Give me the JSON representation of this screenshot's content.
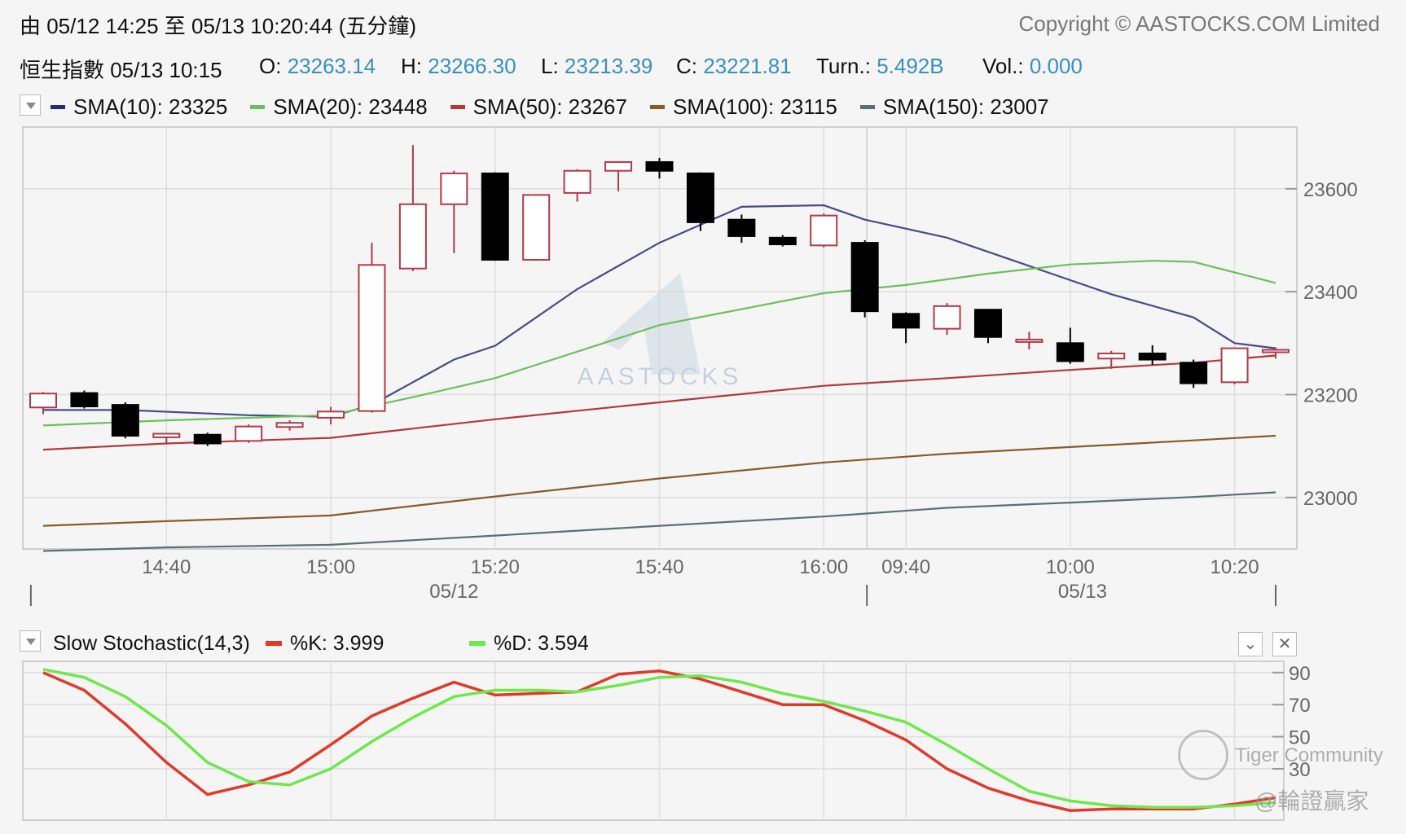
{
  "header": {
    "range_text": "由  05/12 14:25 至  05/13 10:20:44 (五分鐘)",
    "copyright": "Copyright © AASTOCKS.COM Limited",
    "index_name_time": "恒生指數  05/13 10:15",
    "open_label": "O:",
    "open_value": "23263.14",
    "high_label": "H:",
    "high_value": "23266.30",
    "low_label": "L:",
    "low_value": "23213.39",
    "close_label": "C:",
    "close_value": "23221.81",
    "turn_label": "Turn.:",
    "turn_value": "5.492B",
    "vol_label": "Vol.:",
    "vol_value": "0.000"
  },
  "main_legend": [
    {
      "label": "SMA(10): 23325",
      "color": "#2a2a6e"
    },
    {
      "label": "SMA(20): 23448",
      "color": "#6cc05c"
    },
    {
      "label": "SMA(50): 23267",
      "color": "#b03a3a"
    },
    {
      "label": "SMA(100): 23115",
      "color": "#8a5a2a"
    },
    {
      "label": "SMA(150): 23007",
      "color": "#5a7070"
    }
  ],
  "stoch_legend": {
    "title": "Slow Stochastic(14,3)",
    "k_label": "%K: 3.999",
    "k_color": "#e0392a",
    "d_label": "%D: 3.594",
    "d_color": "#6ee84a"
  },
  "watermark": "AASTOCKS",
  "tiger": {
    "line1": "Tiger Community",
    "line2": "@輪證贏家"
  },
  "chart_data": [
    {
      "type": "candlestick",
      "y_ticks": [
        23000,
        23200,
        23400,
        23600
      ],
      "ylim": [
        22900,
        23720
      ],
      "x_tick_labels": [
        "14:40",
        "15:00",
        "15:20",
        "15:40",
        "16:00",
        "09:40",
        "10:00",
        "10:20"
      ],
      "x_tick_index": [
        3,
        7,
        11,
        15,
        19,
        21,
        25,
        29
      ],
      "date_labels": [
        "05/12",
        "05/13"
      ],
      "date_label_index": [
        10,
        25.3
      ],
      "date_separators": [
        -0.3,
        20.05,
        30
      ],
      "up_color": "#b03a4a",
      "down_color": "#000000",
      "candles": [
        {
          "o": 23175,
          "h": 23205,
          "l": 23162,
          "c": 23202
        },
        {
          "o": 23203,
          "h": 23208,
          "l": 23173,
          "c": 23177
        },
        {
          "o": 23180,
          "h": 23185,
          "l": 23115,
          "c": 23120
        },
        {
          "o": 23117,
          "h": 23125,
          "l": 23105,
          "c": 23124
        },
        {
          "o": 23122,
          "h": 23126,
          "l": 23100,
          "c": 23105
        },
        {
          "o": 23110,
          "h": 23142,
          "l": 23106,
          "c": 23138
        },
        {
          "o": 23137,
          "h": 23150,
          "l": 23130,
          "c": 23145
        },
        {
          "o": 23155,
          "h": 23176,
          "l": 23142,
          "c": 23167
        },
        {
          "o": 23168,
          "h": 23495,
          "l": 23165,
          "c": 23452
        },
        {
          "o": 23445,
          "h": 23685,
          "l": 23440,
          "c": 23570
        },
        {
          "o": 23570,
          "h": 23635,
          "l": 23475,
          "c": 23630
        },
        {
          "o": 23630,
          "h": 23632,
          "l": 23460,
          "c": 23462
        },
        {
          "o": 23462,
          "h": 23590,
          "l": 23460,
          "c": 23588
        },
        {
          "o": 23592,
          "h": 23638,
          "l": 23575,
          "c": 23635
        },
        {
          "o": 23635,
          "h": 23650,
          "l": 23595,
          "c": 23652
        },
        {
          "o": 23652,
          "h": 23660,
          "l": 23620,
          "c": 23635
        },
        {
          "o": 23630,
          "h": 23632,
          "l": 23518,
          "c": 23535
        },
        {
          "o": 23540,
          "h": 23550,
          "l": 23495,
          "c": 23508
        },
        {
          "o": 23505,
          "h": 23510,
          "l": 23488,
          "c": 23492
        },
        {
          "o": 23490,
          "h": 23552,
          "l": 23486,
          "c": 23548
        },
        {
          "o": 23495,
          "h": 23500,
          "l": 23350,
          "c": 23362
        },
        {
          "o": 23357,
          "h": 23360,
          "l": 23300,
          "c": 23330
        },
        {
          "o": 23328,
          "h": 23378,
          "l": 23316,
          "c": 23372
        },
        {
          "o": 23365,
          "h": 23366,
          "l": 23300,
          "c": 23312
        },
        {
          "o": 23305,
          "h": 23322,
          "l": 23288,
          "c": 23307
        },
        {
          "o": 23300,
          "h": 23330,
          "l": 23260,
          "c": 23265
        },
        {
          "o": 23270,
          "h": 23285,
          "l": 23250,
          "c": 23280
        },
        {
          "o": 23280,
          "h": 23296,
          "l": 23258,
          "c": 23268
        },
        {
          "o": 23262,
          "h": 23268,
          "l": 23213,
          "c": 23222
        },
        {
          "o": 23224,
          "h": 23292,
          "l": 23220,
          "c": 23290
        },
        {
          "o": 23286,
          "h": 23292,
          "l": 23270,
          "c": 23287
        }
      ],
      "sma_series": [
        {
          "name": "SMA(10)",
          "color": "#4a4a8a",
          "x": [
            0,
            2,
            5,
            7,
            8,
            10,
            11,
            13,
            15,
            17,
            19,
            20,
            22,
            24,
            26,
            28,
            29,
            30
          ],
          "y": [
            23170,
            23170,
            23160,
            23157,
            23180,
            23268,
            23295,
            23405,
            23495,
            23565,
            23568,
            23540,
            23505,
            23450,
            23395,
            23350,
            23300,
            23290
          ]
        },
        {
          "name": "SMA(20)",
          "color": "#6cc05c",
          "x": [
            0,
            3,
            7,
            9,
            11,
            15,
            19,
            21,
            23,
            25,
            27,
            28,
            30
          ],
          "y": [
            23140,
            23150,
            23160,
            23195,
            23232,
            23335,
            23397,
            23413,
            23435,
            23453,
            23460,
            23458,
            23417
          ]
        },
        {
          "name": "SMA(50)",
          "color": "#b03a3a",
          "x": [
            0,
            3,
            7,
            11,
            15,
            19,
            22,
            25,
            28,
            30
          ],
          "y": [
            23093,
            23105,
            23116,
            23152,
            23185,
            23217,
            23232,
            23248,
            23262,
            23276
          ]
        },
        {
          "name": "SMA(100)",
          "color": "#8a5a2a",
          "x": [
            0,
            3,
            7,
            11,
            15,
            19,
            22,
            25,
            28,
            30
          ],
          "y": [
            22945,
            22954,
            22965,
            23002,
            23037,
            23068,
            23085,
            23098,
            23111,
            23120
          ]
        },
        {
          "name": "SMA(150)",
          "color": "#5a7070",
          "x": [
            0,
            3,
            7,
            11,
            15,
            19,
            22,
            25,
            28,
            30
          ],
          "y": [
            22896,
            22903,
            22908,
            22926,
            22945,
            22963,
            22980,
            22990,
            23001,
            23010
          ]
        }
      ]
    },
    {
      "type": "line",
      "title": "Slow Stochastic(14,3)",
      "y_ticks": [
        30,
        50,
        70,
        90
      ],
      "ylim": [
        -2,
        97
      ],
      "x": [
        0,
        1,
        2,
        3,
        4,
        5,
        6,
        7,
        8,
        9,
        10,
        11,
        12,
        13,
        14,
        15,
        16,
        17,
        18,
        19,
        20,
        21,
        22,
        23,
        24,
        25,
        26,
        27,
        28,
        29,
        30
      ],
      "series": [
        {
          "name": "%K",
          "color": "#e0392a",
          "values": [
            90,
            79,
            58,
            34,
            14,
            20,
            28,
            45,
            63,
            74,
            84,
            76,
            77,
            78,
            89,
            91,
            86,
            78,
            70,
            70,
            60,
            48,
            30,
            18,
            10,
            4,
            5,
            5,
            5,
            8,
            12
          ]
        },
        {
          "name": "%D",
          "color": "#6ee84a",
          "values": [
            92,
            87,
            75,
            57,
            34,
            22,
            20,
            30,
            47,
            62,
            75,
            79,
            79,
            78,
            82,
            87,
            88,
            84,
            77,
            72,
            66,
            59,
            45,
            30,
            16,
            10,
            7,
            6,
            6,
            7,
            9
          ]
        }
      ]
    }
  ]
}
